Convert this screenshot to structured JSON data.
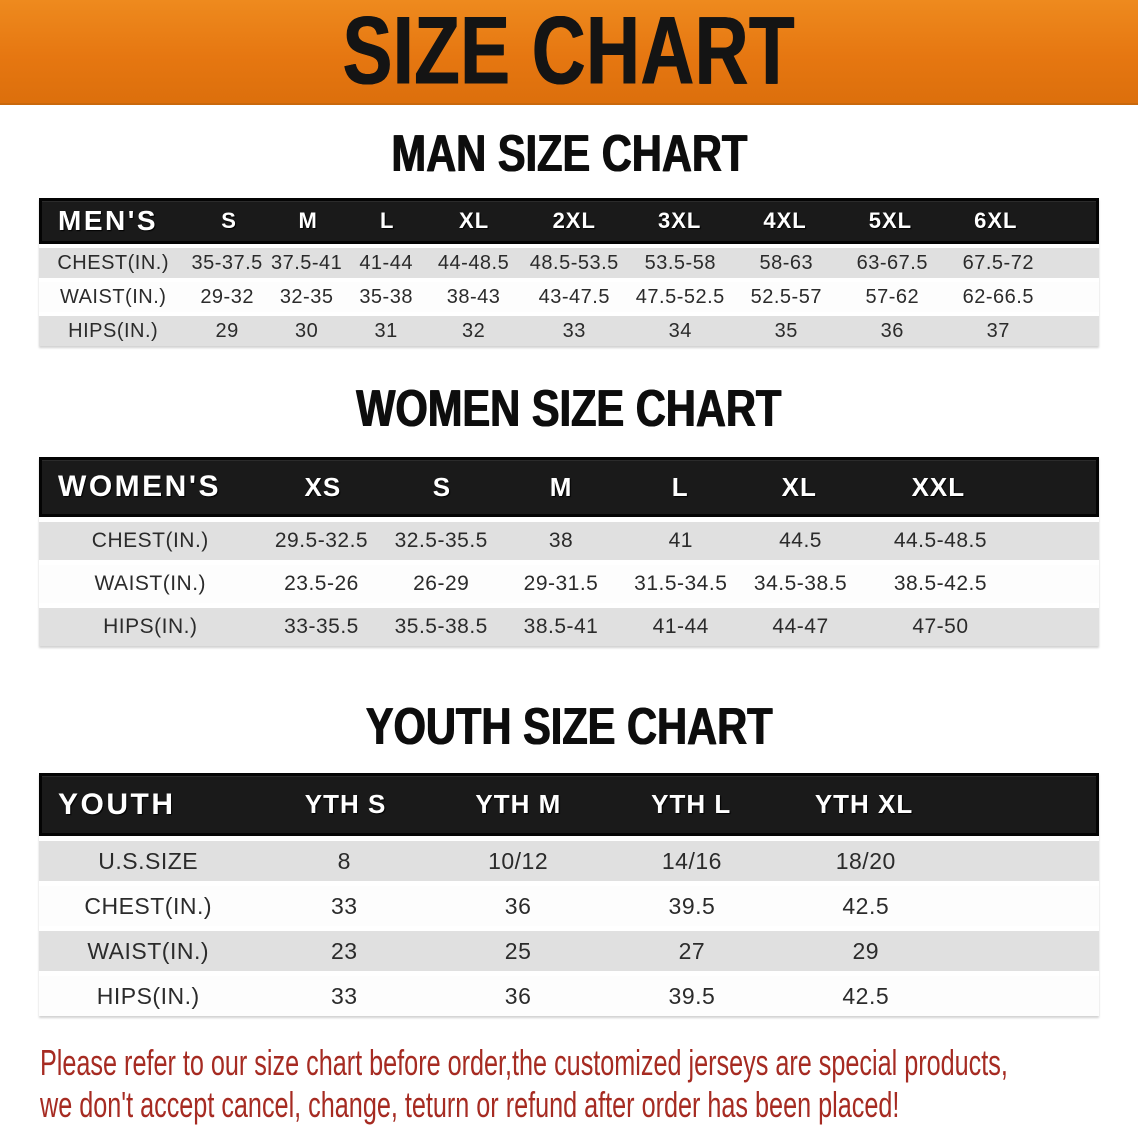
{
  "banner": {
    "title": "SIZE CHART"
  },
  "sections": [
    {
      "heading": "MAN SIZE CHART",
      "table": {
        "corner_label": "MEN'S",
        "columns": [
          "S",
          "M",
          "L",
          "XL",
          "2XL",
          "3XL",
          "4XL",
          "5XL",
          "6XL"
        ],
        "rows": [
          {
            "label": "CHEST(IN.)",
            "values": [
              "35-37.5",
              "37.5-41",
              "41-44",
              "44-48.5",
              "48.5-53.5",
              "53.5-58",
              "58-63",
              "63-67.5",
              "67.5-72"
            ]
          },
          {
            "label": "WAIST(IN.)",
            "values": [
              "29-32",
              "32-35",
              "35-38",
              "38-43",
              "43-47.5",
              "47.5-52.5",
              "52.5-57",
              "57-62",
              "62-66.5"
            ]
          },
          {
            "label": "HIPS(IN.)",
            "values": [
              "29",
              "30",
              "31",
              "32",
              "33",
              "34",
              "35",
              "36",
              "37"
            ]
          }
        ]
      }
    },
    {
      "heading": "WOMEN SIZE CHART",
      "table": {
        "corner_label": "WOMEN'S",
        "columns": [
          "XS",
          "S",
          "M",
          "L",
          "XL",
          "XXL"
        ],
        "rows": [
          {
            "label": "CHEST(IN.)",
            "values": [
              "29.5-32.5",
              "32.5-35.5",
              "38",
              "41",
              "44.5",
              "44.5-48.5"
            ]
          },
          {
            "label": "WAIST(IN.)",
            "values": [
              "23.5-26",
              "26-29",
              "29-31.5",
              "31.5-34.5",
              "34.5-38.5",
              "38.5-42.5"
            ]
          },
          {
            "label": "HIPS(IN.)",
            "values": [
              "33-35.5",
              "35.5-38.5",
              "38.5-41",
              "41-44",
              "44-47",
              "47-50"
            ]
          }
        ]
      }
    },
    {
      "heading": "YOUTH SIZE CHART",
      "table": {
        "corner_label": "YOUTH",
        "columns": [
          "YTH S",
          "YTH M",
          "YTH L",
          "YTH XL"
        ],
        "rows": [
          {
            "label": "U.S.SIZE",
            "values": [
              "8",
              "10/12",
              "14/16",
              "18/20"
            ]
          },
          {
            "label": "CHEST(IN.)",
            "values": [
              "33",
              "36",
              "39.5",
              "42.5"
            ]
          },
          {
            "label": "WAIST(IN.)",
            "values": [
              "23",
              "25",
              "27",
              "29"
            ]
          },
          {
            "label": "HIPS(IN.)",
            "values": [
              "33",
              "36",
              "39.5",
              "42.5"
            ]
          }
        ]
      }
    }
  ],
  "footer": {
    "line1": "Please refer to our size chart before order,the customized jerseys are special products,",
    "line2": "we don't accept cancel, change, teturn or refund after order has been placed!"
  },
  "colors": {
    "banner_orange": "#E67711",
    "banner_orange_light": "#EE8A1E",
    "banner_orange_dark": "#DC6F0C",
    "header_bar_black": "#1A1A1A",
    "row_gray": "#E0E0E0",
    "row_white": "#FDFDFD",
    "body_text": "#2B2B2B",
    "footer_red": "#A62B22"
  }
}
